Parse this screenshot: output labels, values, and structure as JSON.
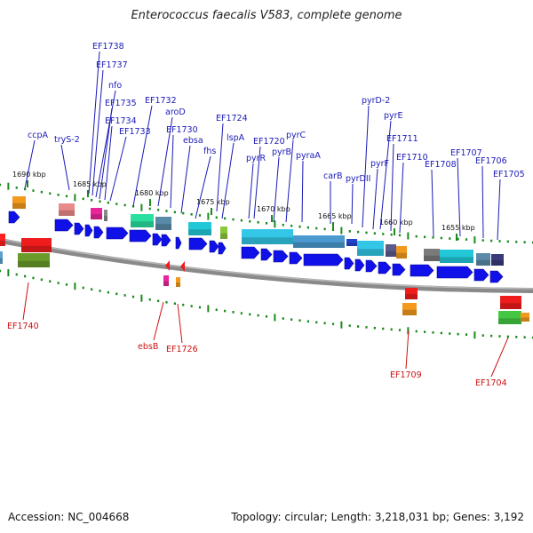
{
  "title": "Enterococcus faecalis V583, complete genome",
  "footer": {
    "accession": "Accession: NC_004668",
    "summary": "Topology: circular; Length: 3,218,031 bp; Genes: 3,192"
  },
  "colors": {
    "forward_label": "#1a1ab8",
    "reverse_label": "#cc1111",
    "tick": "#1a8a1a",
    "backbone": "#8a8a8a"
  },
  "scale_ticks": [
    "1690 kbp",
    "1685 kbp",
    "1680 kbp",
    "1675 kbp",
    "1670 kbp",
    "1665 kbp",
    "1660 kbp",
    "1655 kbp"
  ],
  "forward_genes": [
    "EF1738",
    "EF1737",
    "nfo",
    "EF1735",
    "EF1734",
    "EF1733",
    "EF1732",
    "aroD",
    "EF1730",
    "ebsa",
    "fhs",
    "EF1724",
    "lspA",
    "EF1720",
    "pyrR",
    "pyrB",
    "pyrC",
    "pyraA",
    "carB",
    "pyrDII",
    "pyrD-2",
    "pyrE",
    "pyrF",
    "EF1711",
    "EF1710",
    "EF1708",
    "EF1707",
    "EF1706",
    "EF1705",
    "ccpA",
    "tryS-2"
  ],
  "reverse_genes": [
    "EF1740",
    "ebsB",
    "EF1726",
    "EF1709",
    "EF1704"
  ]
}
